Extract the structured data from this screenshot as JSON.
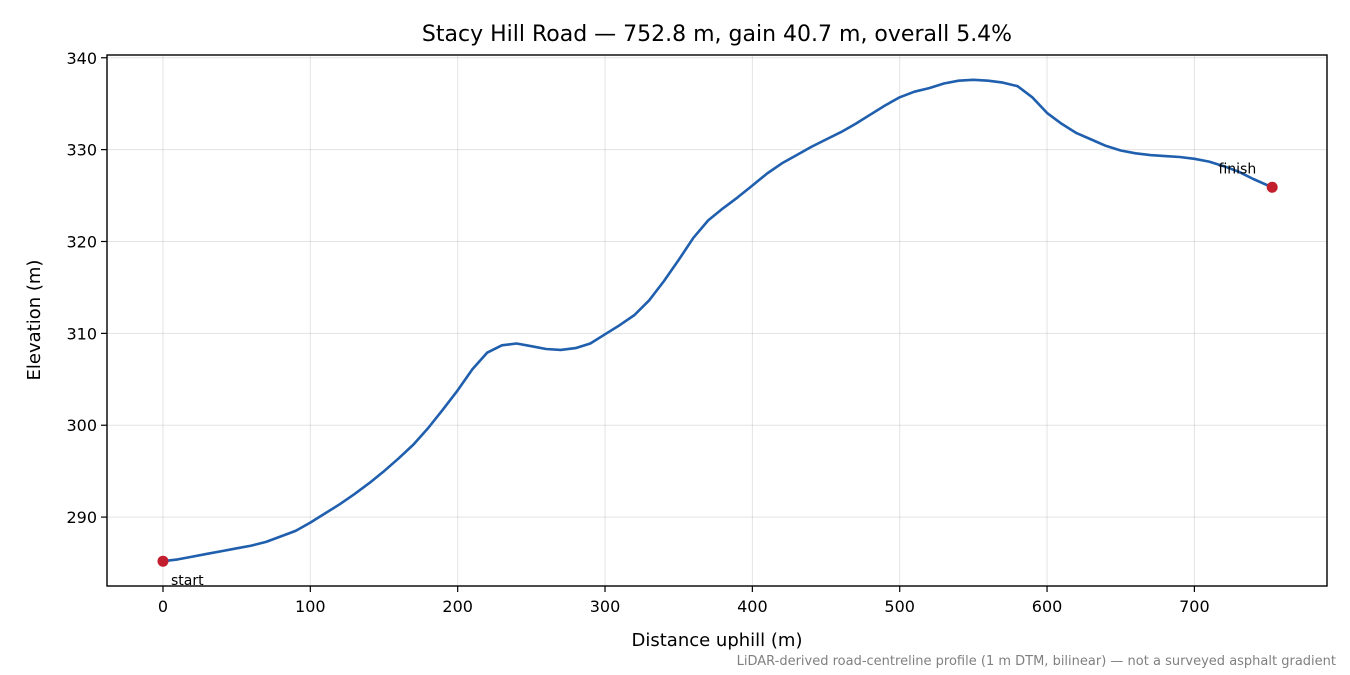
{
  "chart_data": {
    "type": "line",
    "title": "Stacy Hill Road — 752.8 m, gain 40.7 m, overall 5.4%",
    "xlabel": "Distance uphill (m)",
    "ylabel": "Elevation (m)",
    "xlim": [
      -38,
      790
    ],
    "ylim": [
      282.5,
      340.3
    ],
    "x_ticks": [
      0,
      100,
      200,
      300,
      400,
      500,
      600,
      700
    ],
    "y_ticks": [
      290,
      300,
      310,
      320,
      330,
      340
    ],
    "grid": true,
    "line_color": "#1f5fad",
    "marker_color": "#c21e2e",
    "series": [
      {
        "x": [
          0,
          10,
          20,
          30,
          40,
          50,
          60,
          70,
          80,
          90,
          100,
          110,
          120,
          130,
          140,
          150,
          160,
          170,
          180,
          190,
          200,
          210,
          220,
          230,
          240,
          250,
          260,
          270,
          280,
          290,
          300,
          310,
          320,
          330,
          340,
          350,
          360,
          370,
          380,
          390,
          400,
          410,
          420,
          430,
          440,
          450,
          460,
          470,
          480,
          490,
          500,
          510,
          520,
          530,
          540,
          550,
          560,
          570,
          580,
          590,
          600,
          610,
          620,
          630,
          640,
          650,
          660,
          670,
          680,
          690,
          700,
          710,
          720,
          730,
          740,
          752.8
        ],
        "y": [
          285.2,
          285.4,
          285.7,
          286.0,
          286.3,
          286.6,
          286.9,
          287.3,
          287.9,
          288.5,
          289.4,
          290.4,
          291.4,
          292.5,
          293.7,
          295.0,
          296.4,
          297.9,
          299.7,
          301.7,
          303.8,
          306.1,
          307.9,
          308.7,
          308.9,
          308.6,
          308.3,
          308.2,
          308.4,
          308.9,
          309.9,
          310.9,
          312.0,
          313.6,
          315.7,
          318.0,
          320.4,
          322.3,
          323.6,
          324.8,
          326.1,
          327.4,
          328.5,
          329.4,
          330.3,
          331.1,
          331.9,
          332.8,
          333.8,
          334.8,
          335.7,
          336.3,
          336.7,
          337.2,
          337.5,
          337.6,
          337.5,
          337.3,
          336.9,
          335.7,
          334.0,
          332.8,
          331.8,
          331.1,
          330.4,
          329.9,
          329.6,
          329.4,
          329.3,
          329.2,
          329.0,
          328.7,
          328.2,
          327.6,
          326.8,
          325.9
        ]
      }
    ],
    "annotations": [
      {
        "text": "start",
        "x": 0,
        "y": 285.2
      },
      {
        "text": "finish",
        "x": 752.8,
        "y": 325.9
      }
    ],
    "footnote": "LiDAR-derived road-centreline profile (1 m DTM, bilinear) — not a surveyed asphalt gradient"
  }
}
